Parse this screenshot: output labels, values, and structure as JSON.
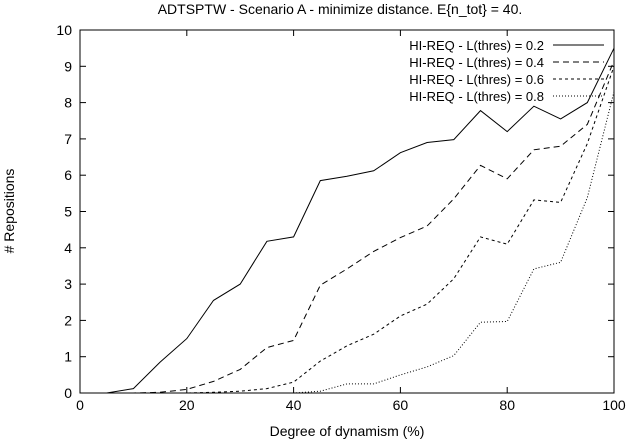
{
  "chart_data": {
    "type": "line",
    "title": "ADTSPTW - Scenario A - minimize distance. E{n_tot} = 40.",
    "xlabel": "Degree of dynamism (%)",
    "ylabel": "# Repositions",
    "xlim": [
      0,
      100
    ],
    "ylim": [
      0,
      10
    ],
    "xticks": [
      0,
      20,
      40,
      60,
      80,
      100
    ],
    "yticks": [
      0,
      1,
      2,
      3,
      4,
      5,
      6,
      7,
      8,
      9,
      10
    ],
    "grid": false,
    "legend_position": "top-right",
    "x": [
      0,
      5,
      10,
      15,
      20,
      25,
      30,
      35,
      40,
      45,
      50,
      55,
      60,
      65,
      70,
      75,
      80,
      85,
      90,
      95,
      100
    ],
    "series": [
      {
        "name": "HI-REQ - L(thres) = 0.2",
        "dash": "",
        "values": [
          0,
          0,
          0.12,
          0.85,
          1.5,
          2.55,
          3.0,
          4.18,
          4.3,
          5.85,
          5.97,
          6.12,
          6.62,
          6.9,
          6.98,
          7.78,
          7.2,
          7.9,
          7.55,
          8.0,
          9.5
        ]
      },
      {
        "name": "HI-REQ - L(thres) = 0.4",
        "dash": "6,4",
        "values": [
          0,
          0,
          0,
          0.02,
          0.1,
          0.32,
          0.65,
          1.25,
          1.45,
          2.97,
          3.42,
          3.9,
          4.28,
          4.6,
          5.35,
          6.27,
          5.9,
          6.7,
          6.8,
          7.4,
          9.15
        ]
      },
      {
        "name": "HI-REQ - L(thres) = 0.6",
        "dash": "3,3",
        "values": [
          0,
          0,
          0,
          0,
          0,
          0.02,
          0.05,
          0.12,
          0.3,
          0.88,
          1.3,
          1.62,
          2.12,
          2.45,
          3.15,
          4.3,
          4.1,
          5.32,
          5.25,
          6.87,
          9.0
        ]
      },
      {
        "name": "HI-REQ - L(thres) = 0.8",
        "dash": "1,2",
        "values": [
          0,
          0,
          0,
          0,
          0,
          0,
          0,
          0,
          0,
          0.05,
          0.25,
          0.25,
          0.5,
          0.72,
          1.03,
          1.95,
          1.97,
          3.42,
          3.6,
          5.38,
          8.3
        ]
      }
    ]
  }
}
